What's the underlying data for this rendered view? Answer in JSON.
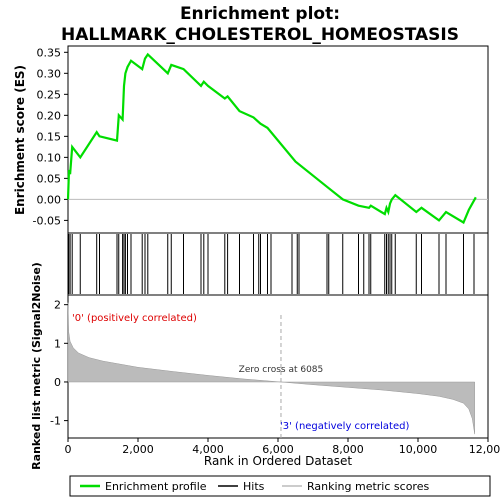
{
  "chart_data": {
    "type": "line",
    "title": "Enrichment plot:",
    "subtitle": "HALLMARK_CHOLESTEROL_HOMEOSTASIS",
    "es_panel": {
      "ylabel": "Enrichment score (ES)",
      "ylim": [
        -0.08,
        0.365
      ],
      "yticks": [
        0.35,
        0.3,
        0.25,
        0.2,
        0.15,
        0.1,
        0.05,
        0.0,
        -0.05
      ],
      "ytick_labels": [
        "0.35",
        "0.30",
        "0.25",
        "0.20",
        "0.15",
        "0.10",
        "0.05",
        "0.00",
        "-0.05"
      ],
      "series": [
        {
          "name": "Enrichment profile",
          "color": "#00dd00",
          "x": [
            0,
            30,
            60,
            120,
            350,
            820,
            900,
            1400,
            1450,
            1560,
            1600,
            1640,
            1700,
            1800,
            2120,
            2200,
            2280,
            2850,
            2950,
            3300,
            3800,
            3880,
            4000,
            4480,
            4560,
            4900,
            5300,
            5500,
            5700,
            6500,
            7400,
            7850,
            8300,
            8600,
            8650,
            9050,
            9100,
            9150,
            9200,
            9250,
            9350,
            9950,
            10100,
            10600,
            10800,
            11300,
            11450,
            11650
          ],
          "y": [
            0.0,
            0.07,
            0.06,
            0.125,
            0.1,
            0.16,
            0.15,
            0.14,
            0.2,
            0.19,
            0.27,
            0.3,
            0.315,
            0.33,
            0.31,
            0.335,
            0.345,
            0.3,
            0.32,
            0.31,
            0.27,
            0.28,
            0.27,
            0.24,
            0.245,
            0.21,
            0.195,
            0.18,
            0.17,
            0.09,
            0.03,
            0.0,
            -0.015,
            -0.02,
            -0.015,
            -0.035,
            -0.02,
            -0.03,
            -0.01,
            0.0,
            0.01,
            -0.03,
            -0.02,
            -0.05,
            -0.03,
            -0.055,
            -0.025,
            0.005
          ]
        }
      ]
    },
    "hits": [
      20,
      60,
      120,
      350,
      820,
      900,
      1400,
      1450,
      1560,
      1600,
      1640,
      1700,
      1800,
      2120,
      2200,
      2280,
      2850,
      2950,
      3300,
      3800,
      3880,
      4000,
      4480,
      4560,
      4900,
      5300,
      5450,
      5500,
      5700,
      5800,
      6400,
      6550,
      6600,
      7400,
      7450,
      7850,
      8300,
      8450,
      8600,
      8650,
      9050,
      9100,
      9150,
      9200,
      9250,
      9350,
      9950,
      10100,
      10600,
      10800,
      11300,
      11600
    ],
    "heat_bar": {
      "positive_label": "'0' (positively correlated)",
      "negative_label": "'3' (negatively correlated)",
      "segments": [
        {
          "from": 0,
          "to": 1100,
          "color": "#e8101a"
        },
        {
          "from": 1100,
          "to": 2600,
          "color": "#f03c40"
        },
        {
          "from": 2600,
          "to": 3700,
          "color": "#f56e72"
        },
        {
          "from": 3700,
          "to": 4800,
          "color": "#f99ea3"
        },
        {
          "from": 4800,
          "to": 6100,
          "color": "#f8c8e8"
        },
        {
          "from": 6100,
          "to": 7400,
          "color": "#dcdcf8"
        },
        {
          "from": 7400,
          "to": 8400,
          "color": "#c8c8f4"
        },
        {
          "from": 8400,
          "to": 9300,
          "color": "#9a9aea"
        },
        {
          "from": 9300,
          "to": 10300,
          "color": "#6a6ade"
        },
        {
          "from": 10300,
          "to": 10950,
          "color": "#4040d0"
        },
        {
          "from": 10950,
          "to": 11600,
          "color": "#1010b8"
        }
      ]
    },
    "metric_panel": {
      "ylabel": "Ranked list metric (Signal2Noise)",
      "ylim": [
        -1.45,
        2.25
      ],
      "yticks": [
        2,
        1,
        0,
        -1
      ],
      "ytick_labels": [
        "2",
        "1",
        "0",
        "-1"
      ],
      "zero_cross": 6085,
      "zero_cross_label": "Zero cross at 6085",
      "x": [
        0,
        20,
        60,
        150,
        300,
        600,
        1000,
        2000,
        3000,
        4000,
        5000,
        6085,
        7000,
        8000,
        9000,
        10000,
        10600,
        11000,
        11300,
        11450,
        11550,
        11620
      ],
      "y": [
        2.05,
        1.3,
        1.05,
        0.88,
        0.75,
        0.63,
        0.54,
        0.38,
        0.27,
        0.17,
        0.08,
        0.0,
        -0.07,
        -0.14,
        -0.21,
        -0.3,
        -0.37,
        -0.45,
        -0.55,
        -0.7,
        -0.95,
        -1.35
      ]
    },
    "xlabel": "Rank in Ordered Dataset",
    "xlim": [
      0,
      12000
    ],
    "xticks": [
      0,
      2000,
      4000,
      6000,
      8000,
      10000,
      12000
    ],
    "xtick_labels": [
      "0",
      "2,000",
      "4,000",
      "6,000",
      "8,000",
      "10,000",
      "12,000"
    ],
    "legend": {
      "placement": "bottom",
      "entries": [
        {
          "label": "Enrichment profile",
          "color": "#00dd00"
        },
        {
          "label": "Hits",
          "color": "#000000"
        },
        {
          "label": "Ranking metric scores",
          "color": "#bbbbbb"
        }
      ]
    },
    "grid": false
  }
}
